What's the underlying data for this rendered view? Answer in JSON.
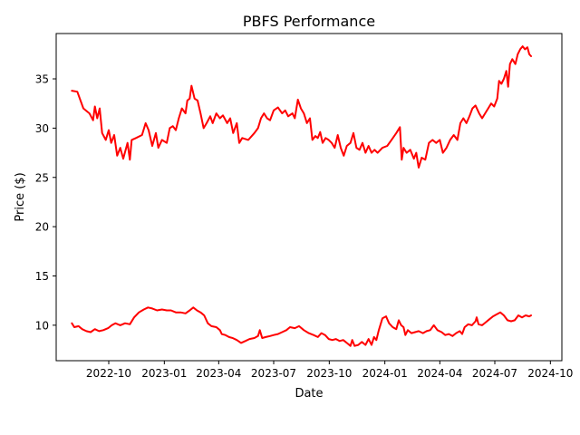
{
  "chart_data": {
    "type": "line",
    "title": "PBFS Performance",
    "xlabel": "Date",
    "ylabel": "Price ($)",
    "line_color": "#ff0000",
    "x_ticks": [
      "2022-10",
      "2023-01",
      "2023-04",
      "2023-07",
      "2023-10",
      "2024-01",
      "2024-04",
      "2024-07",
      "2024-10"
    ],
    "xlim": [
      "2022-07-06",
      "2024-10-20"
    ],
    "y_ticks": [
      10,
      15,
      20,
      25,
      30,
      35
    ],
    "ylim": [
      6.4,
      39.6
    ],
    "grid": false,
    "series": [
      {
        "points": [
          [
            "2022-08-01",
            33.8
          ],
          [
            "2022-08-10",
            33.7
          ],
          [
            "2022-08-20",
            32.0
          ],
          [
            "2022-08-30",
            31.5
          ],
          [
            "2022-09-05",
            30.8
          ],
          [
            "2022-09-08",
            32.2
          ],
          [
            "2022-09-12",
            31.0
          ],
          [
            "2022-09-16",
            32.0
          ],
          [
            "2022-09-20",
            29.5
          ],
          [
            "2022-09-26",
            28.8
          ],
          [
            "2022-10-01",
            29.8
          ],
          [
            "2022-10-05",
            28.5
          ],
          [
            "2022-10-10",
            29.3
          ],
          [
            "2022-10-15",
            27.2
          ],
          [
            "2022-10-20",
            28.0
          ],
          [
            "2022-10-25",
            26.9
          ],
          [
            "2022-11-01",
            28.5
          ],
          [
            "2022-11-05",
            26.8
          ],
          [
            "2022-11-08",
            28.8
          ],
          [
            "2022-11-15",
            29.0
          ],
          [
            "2022-11-25",
            29.3
          ],
          [
            "2022-12-01",
            30.5
          ],
          [
            "2022-12-06",
            29.8
          ],
          [
            "2022-12-12",
            28.2
          ],
          [
            "2022-12-18",
            29.5
          ],
          [
            "2022-12-22",
            28.0
          ],
          [
            "2022-12-28",
            28.8
          ],
          [
            "2023-01-05",
            28.5
          ],
          [
            "2023-01-10",
            30.0
          ],
          [
            "2023-01-15",
            30.2
          ],
          [
            "2023-01-20",
            29.8
          ],
          [
            "2023-01-25",
            31.0
          ],
          [
            "2023-01-30",
            32.0
          ],
          [
            "2023-02-05",
            31.5
          ],
          [
            "2023-02-08",
            32.8
          ],
          [
            "2023-02-12",
            33.0
          ],
          [
            "2023-02-15",
            34.3
          ],
          [
            "2023-02-20",
            33.0
          ],
          [
            "2023-02-25",
            32.8
          ],
          [
            "2023-03-02",
            31.5
          ],
          [
            "2023-03-07",
            30.0
          ],
          [
            "2023-03-12",
            30.5
          ],
          [
            "2023-03-18",
            31.2
          ],
          [
            "2023-03-22",
            30.5
          ],
          [
            "2023-03-28",
            31.5
          ],
          [
            "2023-04-03",
            31.0
          ],
          [
            "2023-04-08",
            31.3
          ],
          [
            "2023-04-15",
            30.5
          ],
          [
            "2023-04-20",
            31.0
          ],
          [
            "2023-04-25",
            29.5
          ],
          [
            "2023-05-01",
            30.5
          ],
          [
            "2023-05-05",
            28.5
          ],
          [
            "2023-05-10",
            29.0
          ],
          [
            "2023-05-20",
            28.8
          ],
          [
            "2023-05-30",
            29.5
          ],
          [
            "2023-06-05",
            30.0
          ],
          [
            "2023-06-10",
            31.0
          ],
          [
            "2023-06-15",
            31.5
          ],
          [
            "2023-06-20",
            31.0
          ],
          [
            "2023-06-25",
            30.8
          ],
          [
            "2023-07-01",
            31.8
          ],
          [
            "2023-07-08",
            32.1
          ],
          [
            "2023-07-15",
            31.5
          ],
          [
            "2023-07-20",
            31.8
          ],
          [
            "2023-07-25",
            31.2
          ],
          [
            "2023-08-01",
            31.5
          ],
          [
            "2023-08-05",
            31.0
          ],
          [
            "2023-08-10",
            32.9
          ],
          [
            "2023-08-15",
            32.0
          ],
          [
            "2023-08-20",
            31.5
          ],
          [
            "2023-08-25",
            30.5
          ],
          [
            "2023-08-30",
            31.0
          ],
          [
            "2023-09-03",
            28.8
          ],
          [
            "2023-09-08",
            29.2
          ],
          [
            "2023-09-12",
            29.0
          ],
          [
            "2023-09-16",
            29.6
          ],
          [
            "2023-09-20",
            28.5
          ],
          [
            "2023-09-25",
            29.0
          ],
          [
            "2023-09-30",
            28.8
          ],
          [
            "2023-10-05",
            28.5
          ],
          [
            "2023-10-10",
            28.0
          ],
          [
            "2023-10-15",
            29.3
          ],
          [
            "2023-10-20",
            28.0
          ],
          [
            "2023-10-25",
            27.2
          ],
          [
            "2023-10-30",
            28.2
          ],
          [
            "2023-11-05",
            28.5
          ],
          [
            "2023-11-10",
            29.5
          ],
          [
            "2023-11-15",
            28.0
          ],
          [
            "2023-11-20",
            27.8
          ],
          [
            "2023-11-25",
            28.5
          ],
          [
            "2023-11-30",
            27.5
          ],
          [
            "2023-12-05",
            28.2
          ],
          [
            "2023-12-10",
            27.5
          ],
          [
            "2023-12-15",
            27.8
          ],
          [
            "2023-12-20",
            27.5
          ],
          [
            "2023-12-28",
            28.0
          ],
          [
            "2024-01-05",
            28.2
          ],
          [
            "2024-01-12",
            28.8
          ],
          [
            "2024-01-20",
            29.5
          ],
          [
            "2024-01-26",
            30.1
          ],
          [
            "2024-01-29",
            26.8
          ],
          [
            "2024-02-01",
            28.0
          ],
          [
            "2024-02-06",
            27.5
          ],
          [
            "2024-02-12",
            27.8
          ],
          [
            "2024-02-18",
            26.9
          ],
          [
            "2024-02-22",
            27.5
          ],
          [
            "2024-02-26",
            26.0
          ],
          [
            "2024-03-02",
            27.0
          ],
          [
            "2024-03-08",
            26.8
          ],
          [
            "2024-03-14",
            28.5
          ],
          [
            "2024-03-20",
            28.8
          ],
          [
            "2024-03-26",
            28.5
          ],
          [
            "2024-04-01",
            28.8
          ],
          [
            "2024-04-06",
            27.5
          ],
          [
            "2024-04-12",
            28.0
          ],
          [
            "2024-04-18",
            28.8
          ],
          [
            "2024-04-24",
            29.3
          ],
          [
            "2024-04-30",
            28.8
          ],
          [
            "2024-05-05",
            30.5
          ],
          [
            "2024-05-10",
            31.0
          ],
          [
            "2024-05-15",
            30.5
          ],
          [
            "2024-05-20",
            31.2
          ],
          [
            "2024-05-25",
            32.0
          ],
          [
            "2024-05-30",
            32.3
          ],
          [
            "2024-06-05",
            31.5
          ],
          [
            "2024-06-10",
            31.0
          ],
          [
            "2024-06-15",
            31.5
          ],
          [
            "2024-06-20",
            32.0
          ],
          [
            "2024-06-25",
            32.5
          ],
          [
            "2024-06-30",
            32.2
          ],
          [
            "2024-07-05",
            33.0
          ],
          [
            "2024-07-08",
            34.8
          ],
          [
            "2024-07-12",
            34.5
          ],
          [
            "2024-07-16",
            35.0
          ],
          [
            "2024-07-20",
            35.8
          ],
          [
            "2024-07-23",
            34.2
          ],
          [
            "2024-07-26",
            36.5
          ],
          [
            "2024-07-30",
            37.0
          ],
          [
            "2024-08-04",
            36.5
          ],
          [
            "2024-08-08",
            37.5
          ],
          [
            "2024-08-12",
            38.0
          ],
          [
            "2024-08-16",
            38.3
          ],
          [
            "2024-08-20",
            38.0
          ],
          [
            "2024-08-24",
            38.2
          ],
          [
            "2024-08-27",
            37.5
          ],
          [
            "2024-08-30",
            37.3
          ]
        ]
      },
      {
        "points": [
          [
            "2022-08-01",
            10.2
          ],
          [
            "2022-08-05",
            9.8
          ],
          [
            "2022-08-12",
            9.9
          ],
          [
            "2022-08-18",
            9.6
          ],
          [
            "2022-08-25",
            9.4
          ],
          [
            "2022-09-01",
            9.3
          ],
          [
            "2022-09-08",
            9.6
          ],
          [
            "2022-09-15",
            9.4
          ],
          [
            "2022-09-22",
            9.5
          ],
          [
            "2022-09-30",
            9.7
          ],
          [
            "2022-10-06",
            10.0
          ],
          [
            "2022-10-12",
            10.2
          ],
          [
            "2022-10-20",
            10.0
          ],
          [
            "2022-10-28",
            10.2
          ],
          [
            "2022-11-05",
            10.1
          ],
          [
            "2022-11-12",
            10.8
          ],
          [
            "2022-11-20",
            11.3
          ],
          [
            "2022-11-28",
            11.6
          ],
          [
            "2022-12-05",
            11.8
          ],
          [
            "2022-12-12",
            11.7
          ],
          [
            "2022-12-20",
            11.5
          ],
          [
            "2022-12-28",
            11.6
          ],
          [
            "2023-01-05",
            11.5
          ],
          [
            "2023-01-12",
            11.5
          ],
          [
            "2023-01-20",
            11.3
          ],
          [
            "2023-01-28",
            11.3
          ],
          [
            "2023-02-05",
            11.2
          ],
          [
            "2023-02-12",
            11.5
          ],
          [
            "2023-02-18",
            11.8
          ],
          [
            "2023-02-24",
            11.5
          ],
          [
            "2023-03-02",
            11.3
          ],
          [
            "2023-03-08",
            11.0
          ],
          [
            "2023-03-14",
            10.2
          ],
          [
            "2023-03-20",
            9.9
          ],
          [
            "2023-03-28",
            9.8
          ],
          [
            "2023-04-03",
            9.5
          ],
          [
            "2023-04-06",
            9.1
          ],
          [
            "2023-04-12",
            9.0
          ],
          [
            "2023-04-18",
            8.8
          ],
          [
            "2023-04-24",
            8.7
          ],
          [
            "2023-05-01",
            8.5
          ],
          [
            "2023-05-08",
            8.2
          ],
          [
            "2023-05-15",
            8.4
          ],
          [
            "2023-05-22",
            8.6
          ],
          [
            "2023-05-30",
            8.7
          ],
          [
            "2023-06-05",
            8.9
          ],
          [
            "2023-06-08",
            9.5
          ],
          [
            "2023-06-12",
            8.7
          ],
          [
            "2023-06-18",
            8.8
          ],
          [
            "2023-06-25",
            8.9
          ],
          [
            "2023-07-01",
            9.0
          ],
          [
            "2023-07-08",
            9.1
          ],
          [
            "2023-07-15",
            9.3
          ],
          [
            "2023-07-22",
            9.5
          ],
          [
            "2023-07-28",
            9.8
          ],
          [
            "2023-08-05",
            9.7
          ],
          [
            "2023-08-12",
            9.9
          ],
          [
            "2023-08-20",
            9.5
          ],
          [
            "2023-08-28",
            9.2
          ],
          [
            "2023-09-05",
            9.0
          ],
          [
            "2023-09-12",
            8.8
          ],
          [
            "2023-09-18",
            9.2
          ],
          [
            "2023-09-24",
            9.0
          ],
          [
            "2023-09-30",
            8.6
          ],
          [
            "2023-10-06",
            8.5
          ],
          [
            "2023-10-12",
            8.6
          ],
          [
            "2023-10-18",
            8.4
          ],
          [
            "2023-10-24",
            8.5
          ],
          [
            "2023-10-30",
            8.2
          ],
          [
            "2023-11-05",
            7.9
          ],
          [
            "2023-11-08",
            8.5
          ],
          [
            "2023-11-12",
            7.9
          ],
          [
            "2023-11-18",
            8.0
          ],
          [
            "2023-11-24",
            8.3
          ],
          [
            "2023-11-30",
            8.0
          ],
          [
            "2023-12-05",
            8.6
          ],
          [
            "2023-12-10",
            8.0
          ],
          [
            "2023-12-14",
            8.8
          ],
          [
            "2023-12-18",
            8.5
          ],
          [
            "2023-12-22",
            9.5
          ],
          [
            "2023-12-28",
            10.7
          ],
          [
            "2024-01-03",
            10.9
          ],
          [
            "2024-01-08",
            10.2
          ],
          [
            "2024-01-14",
            9.8
          ],
          [
            "2024-01-20",
            9.6
          ],
          [
            "2024-01-24",
            10.5
          ],
          [
            "2024-01-28",
            10.0
          ],
          [
            "2024-02-01",
            9.8
          ],
          [
            "2024-02-04",
            9.0
          ],
          [
            "2024-02-08",
            9.5
          ],
          [
            "2024-02-14",
            9.2
          ],
          [
            "2024-02-20",
            9.3
          ],
          [
            "2024-02-26",
            9.4
          ],
          [
            "2024-03-04",
            9.2
          ],
          [
            "2024-03-10",
            9.4
          ],
          [
            "2024-03-16",
            9.5
          ],
          [
            "2024-03-22",
            10.0
          ],
          [
            "2024-03-28",
            9.5
          ],
          [
            "2024-04-04",
            9.3
          ],
          [
            "2024-04-10",
            9.0
          ],
          [
            "2024-04-16",
            9.1
          ],
          [
            "2024-04-22",
            8.9
          ],
          [
            "2024-04-28",
            9.2
          ],
          [
            "2024-05-04",
            9.4
          ],
          [
            "2024-05-08",
            9.1
          ],
          [
            "2024-05-12",
            9.8
          ],
          [
            "2024-05-18",
            10.1
          ],
          [
            "2024-05-24",
            10.0
          ],
          [
            "2024-05-30",
            10.4
          ],
          [
            "2024-06-01",
            10.8
          ],
          [
            "2024-06-04",
            10.1
          ],
          [
            "2024-06-10",
            10.0
          ],
          [
            "2024-06-16",
            10.3
          ],
          [
            "2024-06-22",
            10.6
          ],
          [
            "2024-06-28",
            10.9
          ],
          [
            "2024-07-04",
            11.1
          ],
          [
            "2024-07-10",
            11.3
          ],
          [
            "2024-07-16",
            11.0
          ],
          [
            "2024-07-22",
            10.5
          ],
          [
            "2024-07-28",
            10.4
          ],
          [
            "2024-08-03",
            10.5
          ],
          [
            "2024-08-09",
            11.0
          ],
          [
            "2024-08-15",
            10.8
          ],
          [
            "2024-08-21",
            11.0
          ],
          [
            "2024-08-27",
            10.9
          ],
          [
            "2024-08-30",
            11.0
          ]
        ]
      }
    ]
  }
}
